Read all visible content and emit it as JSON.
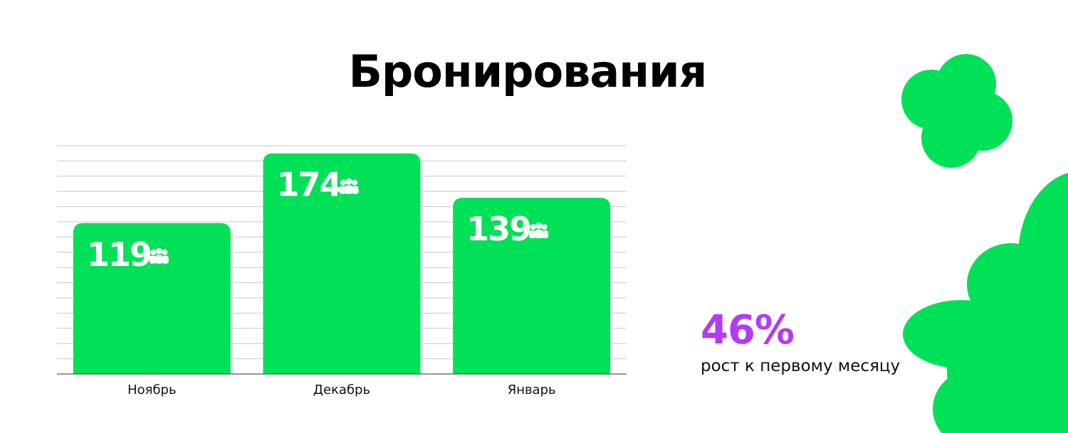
{
  "colors": {
    "bar": "#00e158",
    "accent": "#b13cf5",
    "grid": "#c8c8c8",
    "value_text": "#ffffff",
    "decoration": "#00e158"
  },
  "chart_data": {
    "type": "bar",
    "title": "Бронирования",
    "categories": [
      "Ноябрь",
      "Декабрь",
      "Январь"
    ],
    "values": [
      119,
      174,
      139
    ],
    "value_icon": "people-icon",
    "ylim": [
      0,
      180
    ],
    "grid": true,
    "gridline_count": 15
  },
  "stat": {
    "value": "46%",
    "caption": "рост к первому месяцу"
  }
}
